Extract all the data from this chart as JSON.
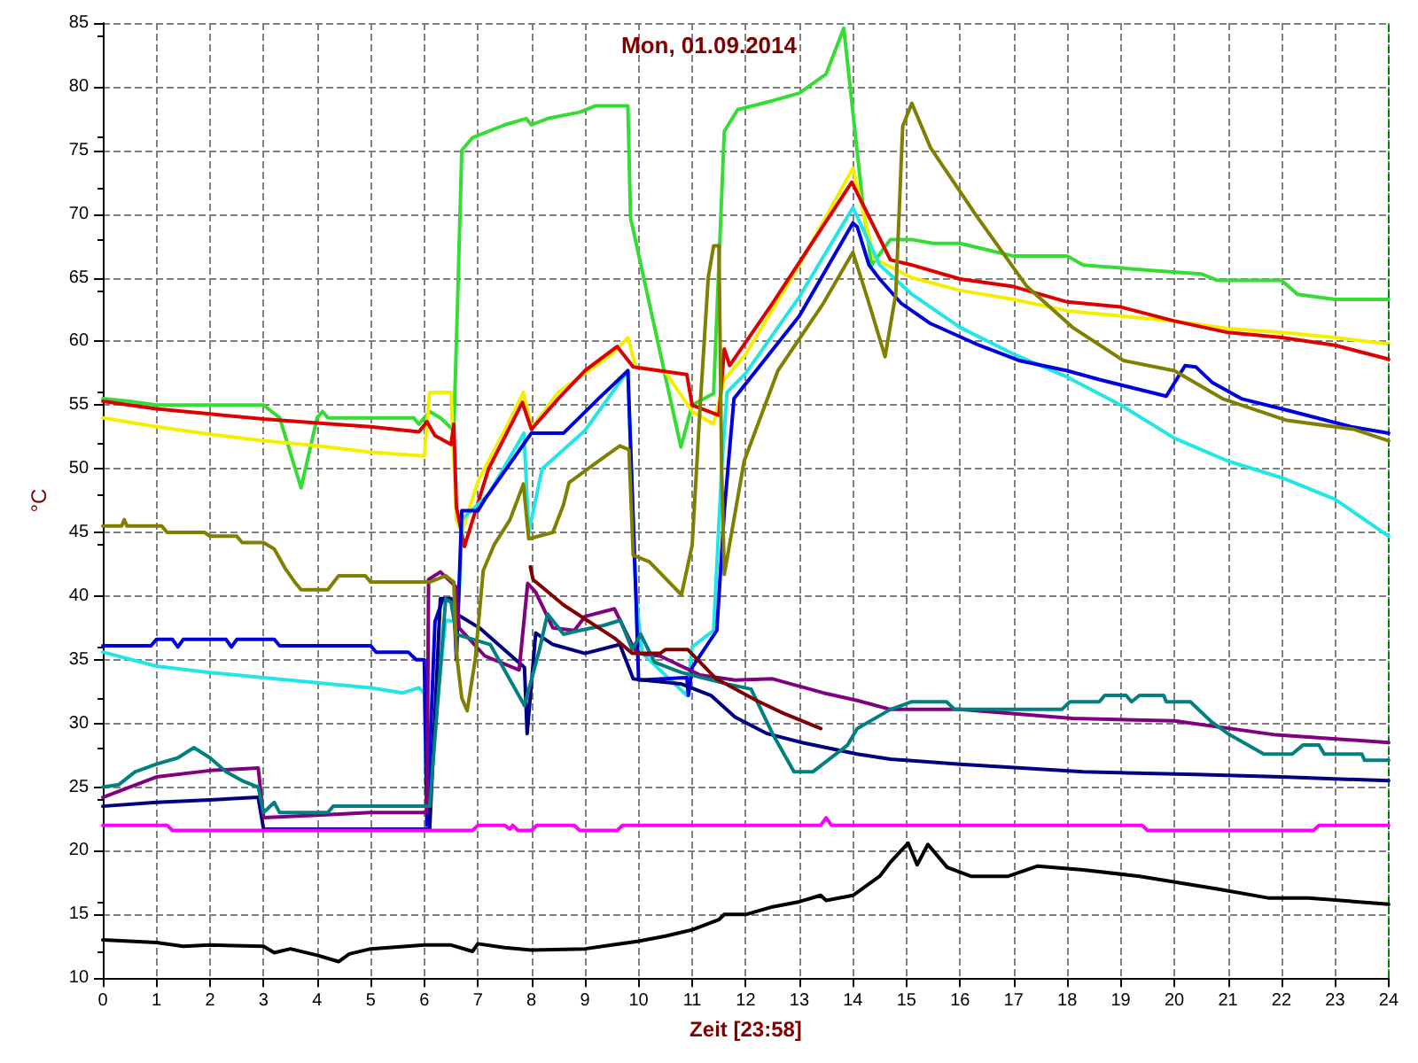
{
  "chart_data": {
    "type": "line",
    "title": "Mon, 01.09.2014",
    "xlabel": "Zeit [23:58]",
    "ylabel": "°C",
    "xlim": [
      0,
      24
    ],
    "ylim": [
      10,
      85
    ],
    "xticks": [
      0,
      1,
      2,
      3,
      4,
      5,
      6,
      7,
      8,
      9,
      10,
      11,
      12,
      13,
      14,
      15,
      16,
      17,
      18,
      19,
      20,
      21,
      22,
      23,
      24
    ],
    "yticks": [
      10,
      15,
      20,
      25,
      30,
      35,
      40,
      45,
      50,
      55,
      60,
      65,
      70,
      75,
      80,
      85
    ],
    "grid": true,
    "marker": "none",
    "line_style": "solid",
    "ref_lines": [
      {
        "axis": "x",
        "value": 24,
        "color": "#008000",
        "line_style": "dashed"
      }
    ],
    "series": [
      {
        "color": "#33dd33",
        "x": [
          0,
          0.5,
          1,
          3.0,
          3.3,
          3.7,
          4.0,
          4.1,
          4.2,
          5.8,
          5.9,
          6.1,
          6.3,
          6.55,
          6.6,
          6.7,
          6.9,
          7.5,
          7.9,
          8.0,
          8.3,
          8.9,
          9.2,
          9.8,
          9.85,
          10.79,
          11.0,
          11.4,
          11.6,
          11.85,
          12.5,
          13.0,
          13.5,
          13.83,
          14.18,
          14.35,
          14.7,
          15.1,
          15.5,
          16.0,
          16.4,
          17.0,
          18.0,
          18.3,
          19.5,
          20.5,
          20.8,
          22.0,
          22.3,
          23.0,
          24
        ],
        "values": [
          55.5,
          55.3,
          55,
          55,
          54,
          48.5,
          54,
          54.5,
          54,
          54,
          53.5,
          54.5,
          54,
          53,
          60,
          75,
          76,
          77,
          77.5,
          77,
          77.5,
          78,
          78.5,
          78.5,
          69.7,
          51.7,
          55,
          55.9,
          76.5,
          78.2,
          78.9,
          79.5,
          81,
          84.6,
          71,
          66,
          68,
          68,
          67.7,
          67.7,
          67.3,
          66.7,
          66.7,
          66,
          65.6,
          65.3,
          64.8,
          64.8,
          63.7,
          63.3,
          63.3
        ]
      },
      {
        "color": "#f5ee00",
        "x": [
          0,
          1,
          2,
          3,
          4,
          5,
          6.0,
          6.1,
          6.5,
          6.6,
          6.7,
          7.0,
          7.5,
          7.85,
          8.0,
          8.5,
          9.0,
          9.5,
          9.8,
          9.95,
          10.5,
          11.0,
          11.4,
          11.6,
          12,
          13,
          14.0,
          14.4,
          15.1,
          16,
          17,
          18,
          19,
          20,
          21,
          22,
          23,
          24
        ],
        "values": [
          54,
          53.3,
          52.7,
          52.2,
          51.8,
          51.3,
          51,
          56,
          56,
          46,
          45,
          49,
          53,
          56,
          53.2,
          56,
          57.5,
          59,
          60.3,
          58,
          57.6,
          54.5,
          53.5,
          57,
          59,
          66,
          73.6,
          66.5,
          65,
          64,
          63.3,
          62.4,
          62,
          61.6,
          61,
          60.7,
          60.3,
          59.8
        ]
      },
      {
        "color": "#dd0000",
        "x": [
          0,
          1,
          2,
          3,
          4,
          5,
          5.9,
          6.05,
          6.2,
          6.5,
          6.55,
          6.6,
          6.75,
          7.2,
          7.83,
          8.0,
          8.5,
          9.0,
          9.6,
          9.9,
          10.9,
          11.0,
          11.5,
          11.6,
          11.7,
          12.5,
          13.98,
          14.7,
          15.1,
          16,
          17,
          18,
          19,
          20,
          21,
          22,
          23,
          24
        ],
        "values": [
          55.3,
          54.7,
          54.3,
          53.9,
          53.6,
          53.3,
          52.9,
          53.7,
          52.6,
          51.9,
          53.5,
          47,
          43.9,
          50,
          55.2,
          53.1,
          55.5,
          57.7,
          59.6,
          58,
          57.4,
          55,
          54.2,
          59.4,
          58.1,
          63,
          72.5,
          66.4,
          66,
          64.9,
          64.3,
          63.1,
          62.7,
          61.6,
          60.7,
          60.3,
          59.7,
          58.6
        ]
      },
      {
        "color": "#22e5e5",
        "x": [
          0,
          1,
          2,
          3,
          4,
          5,
          5.6,
          5.9,
          6.0,
          6.05,
          6.2,
          6.4,
          6.6,
          6.65,
          6.7,
          7.2,
          7.86,
          7.95,
          8.2,
          9.0,
          9.8,
          9.95,
          10.07,
          10.9,
          11.0,
          11.4,
          11.55,
          11.65,
          12,
          13,
          14.0,
          14.5,
          15.1,
          16,
          17,
          18,
          19,
          20,
          21,
          22,
          23,
          24
        ],
        "values": [
          35.6,
          34.5,
          34,
          33.6,
          33.2,
          32.8,
          32.4,
          32.8,
          32.4,
          22,
          30,
          38.1,
          38,
          40,
          46,
          48,
          52.8,
          45,
          50,
          53,
          57.7,
          40,
          35.5,
          32.2,
          36,
          37.3,
          50,
          56,
          57.5,
          63.5,
          70.5,
          66,
          63.7,
          61.1,
          59,
          57.2,
          55,
          52.4,
          50.6,
          49.3,
          47.6,
          44.7
        ]
      },
      {
        "color": "#0000dd",
        "x": [
          0,
          0.9,
          1.0,
          1.3,
          1.4,
          1.5,
          2.3,
          2.4,
          2.5,
          3.2,
          3.3,
          5.0,
          5.1,
          5.7,
          5.85,
          6.0,
          6.05,
          6.2,
          6.35,
          6.55,
          6.6,
          6.7,
          7.0,
          7.13,
          8.0,
          8.6,
          9.25,
          9.8,
          9.95,
          10.0,
          10.9,
          10.93,
          11.0,
          11.46,
          11.6,
          11.78,
          13.0,
          14.0,
          14.08,
          14.3,
          14.5,
          14.9,
          15.45,
          16.3,
          17.1,
          18,
          18.6,
          19.85,
          20.2,
          20.4,
          20.7,
          21.25,
          22.1,
          23.3,
          24
        ],
        "values": [
          36.1,
          36.1,
          36.6,
          36.6,
          36,
          36.6,
          36.6,
          36,
          36.6,
          36.6,
          36.1,
          36.1,
          35.6,
          35.6,
          35,
          35,
          22,
          38,
          39.8,
          39.5,
          35,
          46.7,
          46.7,
          47.6,
          52.8,
          52.8,
          55.5,
          57.7,
          40,
          33.4,
          33.6,
          32.2,
          34.4,
          37.3,
          46.7,
          55.5,
          62,
          69.3,
          69,
          66,
          64.9,
          63,
          61.4,
          59.8,
          58.5,
          57.7,
          57,
          55.7,
          58.1,
          58,
          56.8,
          55.5,
          54.6,
          53.3,
          52.8
        ]
      },
      {
        "color": "#000080",
        "x": [
          0,
          1,
          2,
          2.9,
          3.0,
          6.1,
          6.3,
          6.5,
          6.6,
          7.03,
          7.87,
          7.92,
          8.08,
          8.4,
          9.0,
          9.65,
          9.9,
          10.1,
          10.8,
          11.35,
          11.8,
          12.4,
          13.05,
          14.08,
          14.7,
          16,
          18.3,
          20.4,
          22,
          24
        ],
        "values": [
          23.5,
          23.8,
          24,
          24.2,
          21.7,
          21.7,
          39.8,
          39.8,
          38.6,
          37.5,
          34.4,
          29.2,
          37.1,
          36.2,
          35.5,
          36.2,
          33.5,
          33.4,
          33.1,
          32.2,
          30.5,
          29.2,
          28.5,
          27.6,
          27.2,
          26.8,
          26.2,
          26,
          25.8,
          25.5
        ]
      },
      {
        "color": "#800080",
        "x": [
          0,
          1,
          2,
          2.9,
          3.0,
          4,
          5,
          6.05,
          6.08,
          6.3,
          6.6,
          6.65,
          7.13,
          7.77,
          7.93,
          8.08,
          8.4,
          8.8,
          9.0,
          9.55,
          9.9,
          9.98,
          10.4,
          11.15,
          11.8,
          12.5,
          13.45,
          14.08,
          14.7,
          16,
          18.1,
          20,
          21.9,
          24
        ],
        "values": [
          24.2,
          25.8,
          26.3,
          26.5,
          22.6,
          22.8,
          23,
          23,
          41.3,
          41.9,
          40.7,
          37.5,
          35.3,
          34.2,
          41,
          40.3,
          37.5,
          37.3,
          38.4,
          39,
          36,
          35.5,
          35.3,
          33.8,
          33.4,
          33.5,
          32.4,
          31.8,
          31.1,
          31.1,
          30.4,
          30.2,
          29.1,
          28.5
        ]
      },
      {
        "color": "#008080",
        "x": [
          0,
          0.3,
          0.6,
          1,
          1.4,
          1.7,
          2.0,
          2.3,
          2.6,
          2.9,
          3.0,
          3.2,
          3.3,
          4.2,
          4.3,
          6.1,
          6.4,
          6.5,
          6.6,
          7.23,
          7.87,
          8.15,
          8.3,
          8.6,
          8.9,
          9.35,
          9.66,
          9.88,
          10.04,
          10.3,
          10.8,
          11.65,
          12.1,
          12.5,
          12.9,
          13.25,
          13.9,
          14.08,
          14.7,
          15.1,
          15.75,
          15.9,
          17.9,
          18.05,
          18.6,
          18.7,
          19.1,
          19.2,
          19.35,
          19.8,
          19.85,
          20.3,
          20.7,
          21.0,
          21.67,
          22.2,
          22.4,
          22.7,
          22.8,
          23.5,
          23.55,
          24
        ],
        "values": [
          25,
          25.2,
          26.2,
          26.8,
          27.3,
          28.1,
          27.3,
          26.2,
          25.5,
          25,
          23,
          23.8,
          23,
          23,
          23.5,
          23.5,
          39.8,
          39.5,
          37,
          36.2,
          31.4,
          35.8,
          38.6,
          37,
          37.3,
          37.7,
          38.1,
          35.8,
          37,
          34.8,
          34,
          33.1,
          32.7,
          29.2,
          26.2,
          26.2,
          28.3,
          29.6,
          31.1,
          31.7,
          31.7,
          31.1,
          31.1,
          31.7,
          31.7,
          32.2,
          32.2,
          31.7,
          32.2,
          32.2,
          31.7,
          31.7,
          30.1,
          29.2,
          27.6,
          27.6,
          28.3,
          28.3,
          27.6,
          27.6,
          27.1,
          27.1
        ]
      },
      {
        "color": "#800000",
        "x": [
          7.98,
          8.03,
          8.6,
          9.55,
          9.88,
          10.08,
          10.4,
          10.5,
          10.92,
          11.45,
          12.2,
          12.7,
          13.4
        ],
        "values": [
          42.3,
          41.3,
          39.3,
          36.7,
          35.5,
          35.5,
          35.5,
          35.8,
          35.8,
          33.5,
          31.8,
          30.8,
          29.6
        ]
      },
      {
        "color": "#808000",
        "x": [
          0,
          0.35,
          0.4,
          0.45,
          1.1,
          1.2,
          1.9,
          2.0,
          2.5,
          2.6,
          3.0,
          3.2,
          3.4,
          3.6,
          3.7,
          4.2,
          4.4,
          4.9,
          5.0,
          6.1,
          6.4,
          6.55,
          6.6,
          6.7,
          6.8,
          6.95,
          7.1,
          7.3,
          7.6,
          7.85,
          7.95,
          8.4,
          8.6,
          8.7,
          9.25,
          9.65,
          9.82,
          9.9,
          10.2,
          10.8,
          11.0,
          11.15,
          11.3,
          11.4,
          11.5,
          11.55,
          11.6,
          11.97,
          12.6,
          13.45,
          14.0,
          14.3,
          14.6,
          14.8,
          14.93,
          15.1,
          15.45,
          16.3,
          17.25,
          18.1,
          19.05,
          20,
          20.9,
          22.1,
          23.35,
          24
        ],
        "values": [
          45.5,
          45.5,
          46,
          45.5,
          45.5,
          45,
          45,
          44.7,
          44.7,
          44.2,
          44.2,
          43.7,
          42.2,
          41,
          40.5,
          40.5,
          41.6,
          41.6,
          41.1,
          41.1,
          41.6,
          41.1,
          35.5,
          32,
          31,
          35,
          42,
          44,
          46,
          48.8,
          44.5,
          45,
          47.2,
          48.9,
          50.6,
          51.8,
          51.5,
          43.2,
          42.7,
          40.1,
          44,
          55,
          65,
          67.5,
          67.5,
          50,
          41.7,
          50.6,
          57.7,
          63,
          67,
          63,
          58.8,
          63.7,
          76.9,
          78.7,
          75.2,
          69.9,
          64.3,
          61.1,
          58.5,
          57.7,
          55.5,
          53.8,
          53.1,
          52.2
        ]
      },
      {
        "color": "#ff00ff",
        "x": [
          0,
          1.2,
          1.3,
          6.9,
          7.0,
          7.5,
          7.6,
          7.65,
          7.75,
          8.0,
          8.1,
          8.8,
          8.9,
          9.6,
          9.7,
          13.4,
          13.5,
          13.6,
          19.4,
          19.5,
          22.6,
          22.7,
          24
        ],
        "values": [
          22,
          22,
          21.6,
          21.6,
          22,
          22,
          21.7,
          22,
          21.6,
          21.6,
          22,
          22,
          21.6,
          21.6,
          22,
          22,
          22.6,
          22,
          22,
          21.6,
          21.6,
          22,
          22
        ]
      },
      {
        "color": "#000000",
        "x": [
          0,
          1,
          1.5,
          2,
          3,
          3.2,
          3.5,
          4,
          4.4,
          4.6,
          5,
          6,
          6.5,
          6.9,
          7.0,
          7.5,
          8,
          9,
          9.5,
          10,
          10.5,
          11,
          11.5,
          11.6,
          12,
          12.5,
          13,
          13.4,
          13.5,
          14,
          14.5,
          14.7,
          15.03,
          15.2,
          15.4,
          15.76,
          16.2,
          16.9,
          17.45,
          18.3,
          19.35,
          20.8,
          21.75,
          22.5,
          24
        ],
        "values": [
          13,
          12.8,
          12.5,
          12.6,
          12.5,
          12,
          12.3,
          11.8,
          11.3,
          11.9,
          12.3,
          12.6,
          12.6,
          12.1,
          12.7,
          12.4,
          12.2,
          12.3,
          12.6,
          12.9,
          13.3,
          13.8,
          14.6,
          15,
          15,
          15.6,
          16,
          16.5,
          16.1,
          16.5,
          18,
          19.1,
          20.6,
          18.9,
          20.5,
          18.7,
          18,
          18,
          18.8,
          18.5,
          18,
          17,
          16.3,
          16.3,
          15.8
        ]
      }
    ]
  }
}
